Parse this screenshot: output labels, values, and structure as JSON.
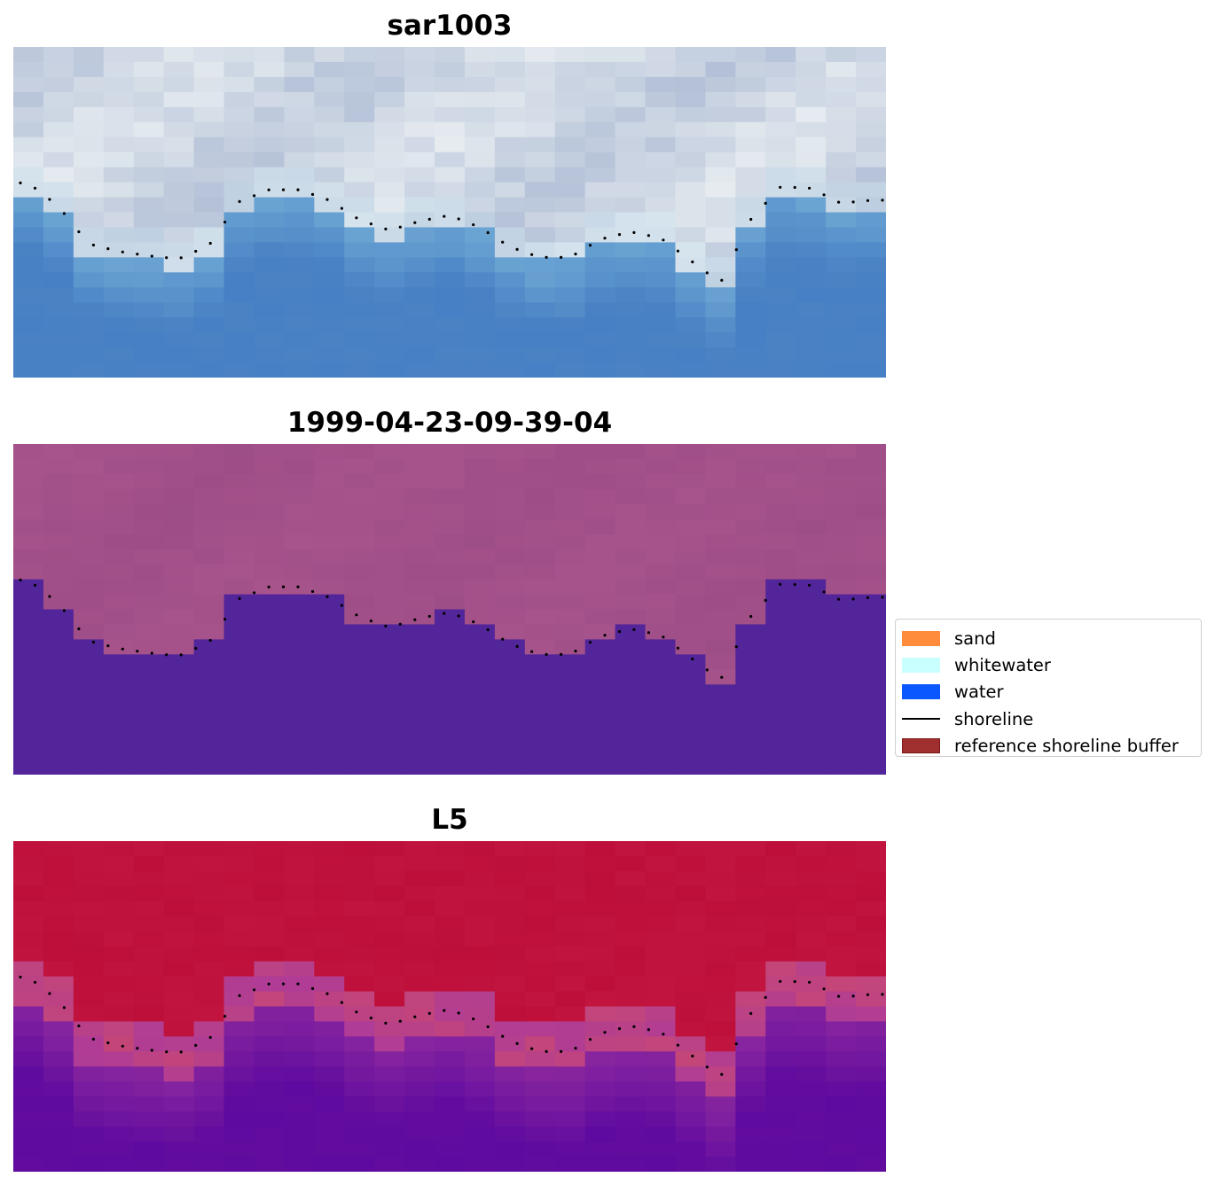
{
  "figure": {
    "panels": [
      {
        "id": "rgb",
        "title": "sar1003"
      },
      {
        "id": "classified",
        "title": "1999-04-23-09-39-04"
      },
      {
        "id": "index",
        "title": "L5"
      }
    ]
  },
  "legend": {
    "placement": "center-right",
    "items": [
      {
        "label": "sand",
        "kind": "patch",
        "color": "#ff8c3a",
        "edge": "#ff8c3a"
      },
      {
        "label": "whitewater",
        "kind": "patch",
        "color": "#c9ffff",
        "edge": "#c9ffff"
      },
      {
        "label": "water",
        "kind": "patch",
        "color": "#0a56ff",
        "edge": "#0a56ff"
      },
      {
        "label": "shoreline",
        "kind": "line",
        "color": "#000000"
      },
      {
        "label": "reference shoreline buffer",
        "kind": "patch",
        "color": "#a03030",
        "edge": "#7a1818"
      }
    ]
  },
  "chart_data": {
    "type": "heatmap",
    "grid": {
      "columns": 29,
      "rows": 22
    },
    "shoreline_profile_rows": [
      9.05,
      10.6,
      13.1,
      13.6,
      13.9,
      14.1,
      13.2,
      10.3,
      9.5,
      9.5,
      10.2,
      11.5,
      12.2,
      11.6,
      11.2,
      12.0,
      13.3,
      14.0,
      14.0,
      12.8,
      12.3,
      12.7,
      14.2,
      15.7,
      11.5,
      9.3,
      9.4,
      10.4,
      10.2
    ],
    "colors": {
      "rgb_sand_light": "#e6ecf0",
      "rgb_water": "#4a82c4",
      "classified_land": "#a8548c",
      "classified_water": "#53259a",
      "index_high": "#bd0f3a",
      "index_low": "#5e0aa0",
      "shoreline_dots": "#000000"
    }
  }
}
